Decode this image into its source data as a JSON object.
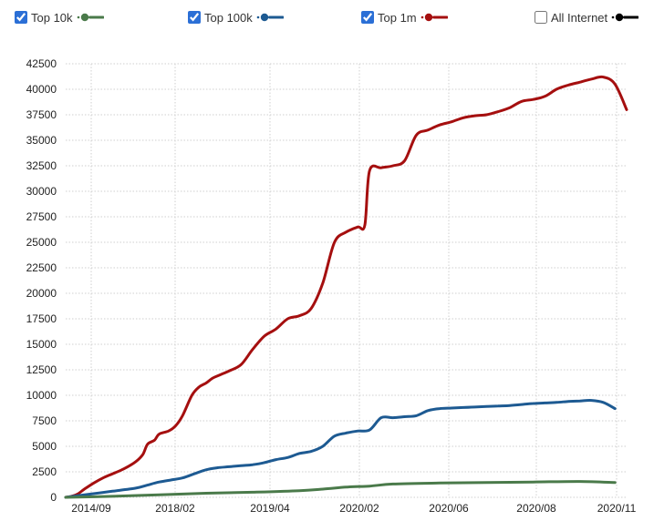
{
  "legend": [
    {
      "label": "Top 10k",
      "checked": true,
      "color": "#4a7a4a"
    },
    {
      "label": "Top 100k",
      "checked": true,
      "color": "#1d5a92"
    },
    {
      "label": "Top 1m",
      "checked": true,
      "color": "#a50f0f"
    },
    {
      "label": "All Internet",
      "checked": false,
      "color": "#000000"
    }
  ],
  "chart_data": {
    "type": "line",
    "x_ticks": [
      "2014/09",
      "2018/02",
      "2019/04",
      "2020/02",
      "2020/06",
      "2020/08",
      "2020/11"
    ],
    "ylim": [
      0,
      42500
    ],
    "y_ticks": [
      0,
      2500,
      5000,
      7500,
      10000,
      12500,
      15000,
      17500,
      20000,
      22500,
      25000,
      27500,
      30000,
      32500,
      35000,
      37500,
      40000,
      42500
    ],
    "grid": true,
    "series": [
      {
        "name": "Top 1m",
        "color": "#a50f0f",
        "x": [
          0,
          2.5,
          5,
          8,
          12,
          16,
          20,
          25,
          30,
          33,
          35,
          38,
          40,
          44,
          47,
          50,
          54,
          57,
          60,
          63,
          66,
          70,
          75,
          80,
          85,
          90,
          95,
          100,
          105,
          110,
          115,
          120,
          125,
          128,
          130,
          135,
          140,
          145,
          150,
          155,
          160,
          165,
          170,
          175,
          180,
          185,
          190,
          195,
          200,
          205,
          210,
          215,
          220,
          225,
          230,
          235,
          240,
          245,
          250,
          255,
          260,
          265,
          270,
          275,
          280,
          285,
          290,
          293,
          296,
          300
        ],
        "values": [
          0,
          100,
          300,
          800,
          1400,
          1900,
          2300,
          2800,
          3500,
          4200,
          5200,
          5600,
          6200,
          6500,
          7000,
          8000,
          10000,
          10800,
          11200,
          11700,
          12000,
          12400,
          13000,
          14500,
          15800,
          16500,
          17500,
          17800,
          18500,
          21000,
          25000,
          26000,
          26500,
          26700,
          32000,
          32300,
          32500,
          33000,
          35500,
          36000,
          36500,
          36800,
          37200,
          37400,
          37500,
          37800,
          38200,
          38800,
          39000,
          39300,
          40000,
          40400,
          40700,
          41000,
          41200,
          40500,
          38000,
          37000,
          37500,
          37600,
          37800,
          38000,
          38100,
          38200,
          38300,
          38400,
          38500,
          38600,
          38700,
          38800
        ],
        "end_index": 56
      },
      {
        "name": "Top 100k",
        "color": "#1d5a92",
        "x": [
          0,
          10,
          20,
          30,
          35,
          40,
          45,
          50,
          55,
          60,
          65,
          70,
          75,
          80,
          85,
          90,
          95,
          100,
          105,
          110,
          115,
          120,
          125,
          130,
          135,
          140,
          145,
          150,
          155,
          160,
          165,
          170,
          175,
          180,
          185,
          190,
          195,
          200,
          205,
          210,
          215,
          220,
          225,
          230,
          235
        ],
        "values": [
          0,
          300,
          600,
          900,
          1200,
          1500,
          1700,
          1900,
          2300,
          2700,
          2900,
          3000,
          3100,
          3200,
          3400,
          3700,
          3900,
          4300,
          4500,
          5000,
          6000,
          6300,
          6500,
          6600,
          7800,
          7800,
          7900,
          8000,
          8500,
          8700,
          8750,
          8800,
          8850,
          8900,
          8950,
          9000,
          9100,
          9200,
          9250,
          9300,
          9400,
          9450,
          9500,
          9300,
          8700
        ],
        "end_index": 44
      },
      {
        "name": "Top 10k",
        "color": "#4a7a4a",
        "x": [
          0,
          20,
          40,
          60,
          80,
          100,
          110,
          120,
          130,
          140,
          160,
          180,
          200,
          220,
          235
        ],
        "values": [
          0,
          100,
          250,
          400,
          500,
          650,
          800,
          1000,
          1100,
          1300,
          1400,
          1450,
          1500,
          1550,
          1450
        ],
        "end_index": 14
      }
    ]
  }
}
